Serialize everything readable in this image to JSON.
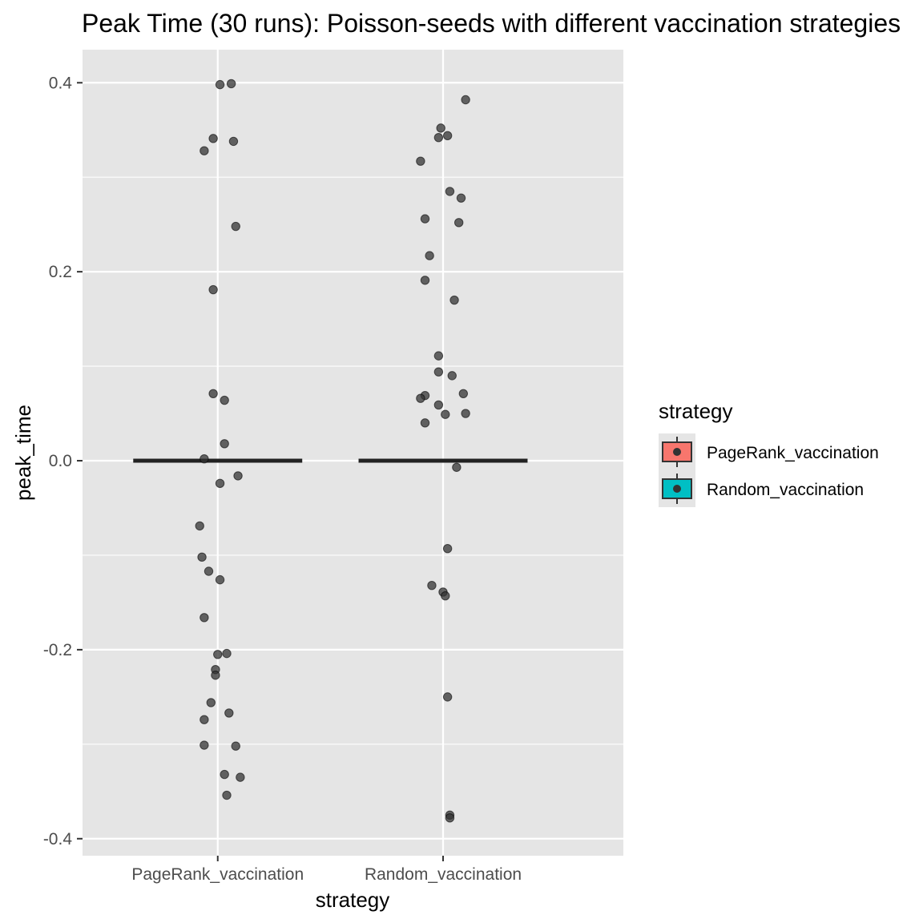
{
  "chart_data": {
    "type": "scatter",
    "title": "Peak Time (30 runs): Poisson-seeds with different vaccination strategies",
    "xlabel": "strategy",
    "ylabel": "peak_time",
    "categories": [
      "PageRank_vaccination",
      "Random_vaccination"
    ],
    "ylim": [
      -0.418,
      0.435
    ],
    "yticks": [
      -0.4,
      -0.2,
      0.0,
      0.2,
      0.4
    ],
    "ytick_labels": [
      "-0.4",
      "-0.2",
      "0.0",
      "0.2",
      "0.4"
    ],
    "grid": true,
    "panel_background": "#e5e5e5",
    "grid_color": "#ffffff",
    "point_color": "#333333",
    "median_line_color": "#222222",
    "medians": [
      0.0,
      0.0
    ],
    "legend": {
      "title": "strategy",
      "position": "right",
      "entries": [
        {
          "label": "PageRank_vaccination",
          "color": "#f8766d"
        },
        {
          "label": "Random_vaccination",
          "color": "#00bfc4"
        }
      ]
    },
    "series": [
      {
        "category": "PageRank_vaccination",
        "points": [
          {
            "x": 0.01,
            "y": 0.398
          },
          {
            "x": 0.06,
            "y": 0.399
          },
          {
            "x": -0.02,
            "y": 0.341
          },
          {
            "x": 0.07,
            "y": 0.338
          },
          {
            "x": -0.06,
            "y": 0.328
          },
          {
            "x": 0.08,
            "y": 0.248
          },
          {
            "x": -0.02,
            "y": 0.181
          },
          {
            "x": -0.02,
            "y": 0.071
          },
          {
            "x": 0.03,
            "y": 0.064
          },
          {
            "x": 0.03,
            "y": 0.018
          },
          {
            "x": -0.06,
            "y": 0.002
          },
          {
            "x": 0.01,
            "y": -0.024
          },
          {
            "x": 0.09,
            "y": -0.016
          },
          {
            "x": -0.08,
            "y": -0.069
          },
          {
            "x": -0.07,
            "y": -0.102
          },
          {
            "x": -0.04,
            "y": -0.117
          },
          {
            "x": 0.01,
            "y": -0.126
          },
          {
            "x": -0.06,
            "y": -0.166
          },
          {
            "x": 0.04,
            "y": -0.204
          },
          {
            "x": 0.0,
            "y": -0.205
          },
          {
            "x": -0.01,
            "y": -0.221
          },
          {
            "x": -0.01,
            "y": -0.227
          },
          {
            "x": -0.03,
            "y": -0.256
          },
          {
            "x": 0.05,
            "y": -0.267
          },
          {
            "x": -0.06,
            "y": -0.274
          },
          {
            "x": -0.06,
            "y": -0.301
          },
          {
            "x": 0.08,
            "y": -0.302
          },
          {
            "x": 0.03,
            "y": -0.332
          },
          {
            "x": 0.1,
            "y": -0.335
          },
          {
            "x": 0.04,
            "y": -0.354
          }
        ]
      },
      {
        "category": "Random_vaccination",
        "points": [
          {
            "x": 0.1,
            "y": 0.382
          },
          {
            "x": -0.01,
            "y": 0.352
          },
          {
            "x": 0.02,
            "y": 0.344
          },
          {
            "x": -0.02,
            "y": 0.342
          },
          {
            "x": -0.1,
            "y": 0.317
          },
          {
            "x": 0.03,
            "y": 0.285
          },
          {
            "x": 0.08,
            "y": 0.278
          },
          {
            "x": -0.08,
            "y": 0.256
          },
          {
            "x": 0.07,
            "y": 0.252
          },
          {
            "x": -0.06,
            "y": 0.217
          },
          {
            "x": -0.08,
            "y": 0.191
          },
          {
            "x": 0.05,
            "y": 0.17
          },
          {
            "x": -0.02,
            "y": 0.111
          },
          {
            "x": -0.02,
            "y": 0.094
          },
          {
            "x": 0.04,
            "y": 0.09
          },
          {
            "x": 0.09,
            "y": 0.071
          },
          {
            "x": -0.08,
            "y": 0.069
          },
          {
            "x": -0.1,
            "y": 0.066
          },
          {
            "x": -0.02,
            "y": 0.059
          },
          {
            "x": 0.01,
            "y": 0.049
          },
          {
            "x": 0.1,
            "y": 0.05
          },
          {
            "x": -0.08,
            "y": 0.04
          },
          {
            "x": 0.06,
            "y": -0.007
          },
          {
            "x": 0.02,
            "y": -0.093
          },
          {
            "x": -0.05,
            "y": -0.132
          },
          {
            "x": 0.0,
            "y": -0.139
          },
          {
            "x": 0.01,
            "y": -0.143
          },
          {
            "x": 0.02,
            "y": -0.25
          },
          {
            "x": 0.03,
            "y": -0.375
          },
          {
            "x": 0.03,
            "y": -0.378
          }
        ]
      }
    ]
  }
}
